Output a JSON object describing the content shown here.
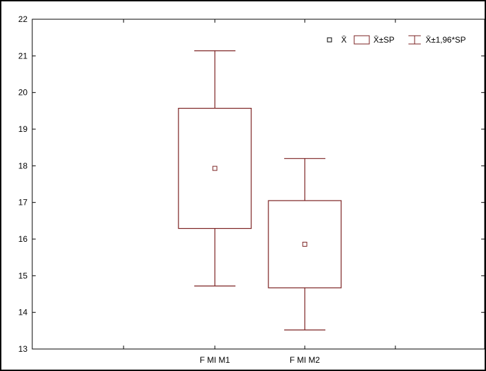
{
  "chart_data": {
    "type": "box",
    "title": "",
    "xlabel": "",
    "ylabel": "",
    "ylim": [
      13,
      22
    ],
    "yticks": [
      13,
      14,
      15,
      16,
      17,
      18,
      19,
      20,
      21,
      22
    ],
    "grid": false,
    "legend_position": "top-right",
    "legend": [
      {
        "symbol": "mean-marker",
        "text": "X̄"
      },
      {
        "symbol": "box",
        "text": "X̄±SP"
      },
      {
        "symbol": "whisker",
        "text": "X̄±1,96*SP"
      }
    ],
    "categories": [
      "F MI M1",
      "F MI M2"
    ],
    "series": [
      {
        "category": "F MI M1",
        "mean": 17.93,
        "box_low": 16.29,
        "box_high": 19.57,
        "whisker_low": 14.72,
        "whisker_high": 21.14
      },
      {
        "category": "F MI M2",
        "mean": 15.86,
        "box_low": 14.67,
        "box_high": 17.05,
        "whisker_low": 13.52,
        "whisker_high": 18.2
      }
    ],
    "color": "#7a1f1f"
  }
}
